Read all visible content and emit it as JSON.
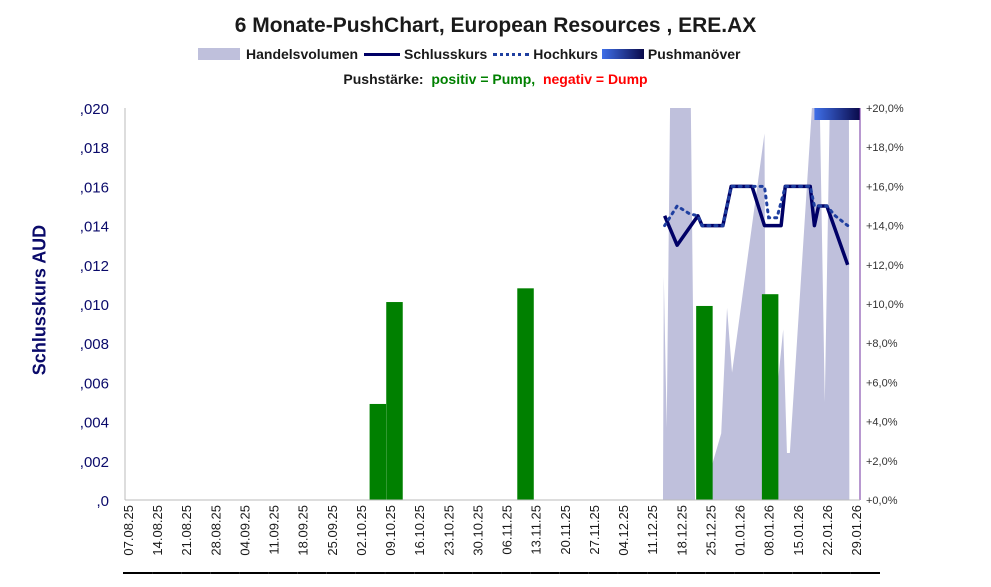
{
  "chart_data": {
    "type": "combo",
    "title": "6 Monate-PushChart, European Resources , ERE.AX",
    "legend": [
      {
        "label": "Handelsvolumen",
        "color": "#bfc0dc"
      },
      {
        "label": "Schlusskurs",
        "color": "#000066"
      },
      {
        "label": "Hochkurs",
        "color": "#1f3fa0"
      },
      {
        "label": "Pushmanöver",
        "color": "#3f6fe8"
      }
    ],
    "subtitle": {
      "prefix": "Pushstärke:",
      "positive": "positiv = Pump,",
      "negative": "negativ = Dump",
      "positive_color": "#008000",
      "negative_color": "#ff0000"
    },
    "ylabel": "Schlusskurs AUD",
    "ylim": [
      0,
      0.02
    ],
    "y_ticks": [
      ",0",
      ",002",
      ",004",
      ",006",
      ",008",
      ",010",
      ",012",
      ",014",
      ",016",
      ",018",
      ",020"
    ],
    "y2lim": [
      0,
      20
    ],
    "y2_ticks": [
      "+0,0%",
      "+2,0%",
      "+4,0%",
      "+6,0%",
      "+8,0%",
      "+10,0%",
      "+12,0%",
      "+14,0%",
      "+16,0%",
      "+18,0%",
      "+20,0%"
    ],
    "x_start": "07.08.25",
    "x_ticks": [
      "07.08.25",
      "14.08.25",
      "21.08.25",
      "28.08.25",
      "04.09.25",
      "11.09.25",
      "18.09.25",
      "25.09.25",
      "02.10.25",
      "09.10.25",
      "16.10.25",
      "23.10.25",
      "30.10.25",
      "06.11.25",
      "13.11.25",
      "20.11.25",
      "27.11.25",
      "04.12.25",
      "11.12.25",
      "18.12.25",
      "25.12.25",
      "01.01.26",
      "08.01.26",
      "15.01.26",
      "22.01.26",
      "29.01.26"
    ],
    "x_unit": "days since 07.08.25",
    "schlusskurs": [
      [
        129,
        0.0145
      ],
      [
        132,
        0.013
      ],
      [
        137,
        0.0145
      ],
      [
        138,
        0.014
      ],
      [
        143,
        0.014
      ],
      [
        145,
        0.016
      ],
      [
        150,
        0.016
      ],
      [
        153,
        0.014
      ],
      [
        157,
        0.014
      ],
      [
        158,
        0.016
      ],
      [
        164,
        0.016
      ],
      [
        165,
        0.014
      ],
      [
        166,
        0.015
      ],
      [
        168,
        0.015
      ],
      [
        173,
        0.012
      ]
    ],
    "hochkurs": [
      [
        129,
        0.014
      ],
      [
        132,
        0.015
      ],
      [
        135,
        0.0146
      ],
      [
        137,
        0.0145
      ],
      [
        138,
        0.014
      ],
      [
        143,
        0.014
      ],
      [
        145,
        0.016
      ],
      [
        153,
        0.016
      ],
      [
        154,
        0.0144
      ],
      [
        156,
        0.0144
      ],
      [
        158,
        0.016
      ],
      [
        164,
        0.016
      ],
      [
        165,
        0.015
      ],
      [
        168,
        0.015
      ],
      [
        170,
        0.0145
      ],
      [
        173,
        0.014
      ]
    ],
    "handelsvolumen_pct": [
      [
        128.6,
        0
      ],
      [
        128.8,
        11.4
      ],
      [
        129.5,
        3.7
      ],
      [
        130.3,
        20
      ],
      [
        135.3,
        20
      ],
      [
        136.3,
        0
      ],
      [
        139.7,
        0
      ],
      [
        140,
        1.5
      ],
      [
        142.6,
        3.4
      ],
      [
        144,
        9.8
      ],
      [
        145.2,
        6.5
      ],
      [
        153,
        18.7
      ],
      [
        153.4,
        0
      ],
      [
        157.5,
        8.7
      ],
      [
        158.4,
        2.4
      ],
      [
        159.1,
        2.4
      ],
      [
        164.4,
        20
      ],
      [
        166.3,
        20
      ],
      [
        167.5,
        5
      ],
      [
        168.7,
        20
      ],
      [
        173.3,
        20
      ],
      [
        173.4,
        0
      ]
    ],
    "pushstaerke_pct": [
      [
        60,
        4.9
      ],
      [
        64,
        10.1
      ],
      [
        95.5,
        10.8
      ],
      [
        138.5,
        9.9
      ],
      [
        154.3,
        10.5
      ]
    ],
    "pushmanoever": [
      [
        165,
        175
      ]
    ]
  }
}
